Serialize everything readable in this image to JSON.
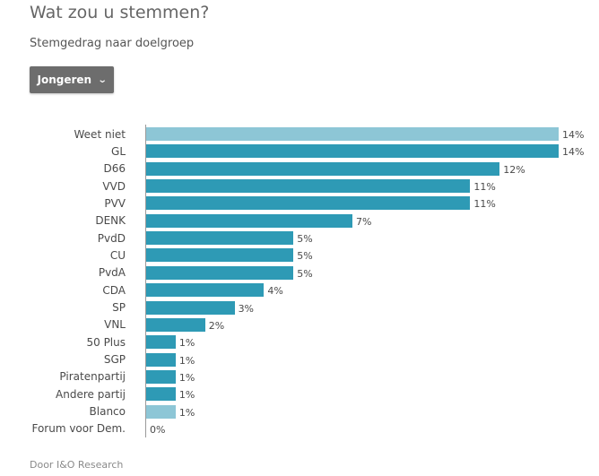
{
  "header": {
    "title": "Wat zou u stemmen?",
    "subtitle": "Stemgedrag naar doelgroep"
  },
  "filter": {
    "selected": "Jongeren",
    "icon": "chevron-down-icon"
  },
  "footer": {
    "source": "Door I&O Research"
  },
  "colors": {
    "bar": "#2e9ab5",
    "bar_light": "#8dc6d6"
  },
  "chart_data": {
    "type": "bar",
    "orientation": "horizontal",
    "categories": [
      "Weet niet",
      "GL",
      "D66",
      "VVD",
      "PVV",
      "DENK",
      "PvdD",
      "CU",
      "PvdA",
      "CDA",
      "SP",
      "VNL",
      "50 Plus",
      "SGP",
      "Piratenpartij",
      "Andere partij",
      "Blanco",
      "Forum voor Dem."
    ],
    "values": [
      14,
      14,
      12,
      11,
      11,
      7,
      5,
      5,
      5,
      4,
      3,
      2,
      1,
      1,
      1,
      1,
      1,
      0
    ],
    "value_labels": [
      "14%",
      "14%",
      "12%",
      "11%",
      "11%",
      "7%",
      "5%",
      "5%",
      "5%",
      "4%",
      "3%",
      "2%",
      "1%",
      "1%",
      "1%",
      "1%",
      "1%",
      "0%"
    ],
    "highlight": [
      "light",
      "dark",
      "dark",
      "dark",
      "dark",
      "dark",
      "dark",
      "dark",
      "dark",
      "dark",
      "dark",
      "dark",
      "dark",
      "dark",
      "dark",
      "dark",
      "light",
      "dark"
    ],
    "xlim": [
      0,
      14
    ],
    "grid": false
  }
}
